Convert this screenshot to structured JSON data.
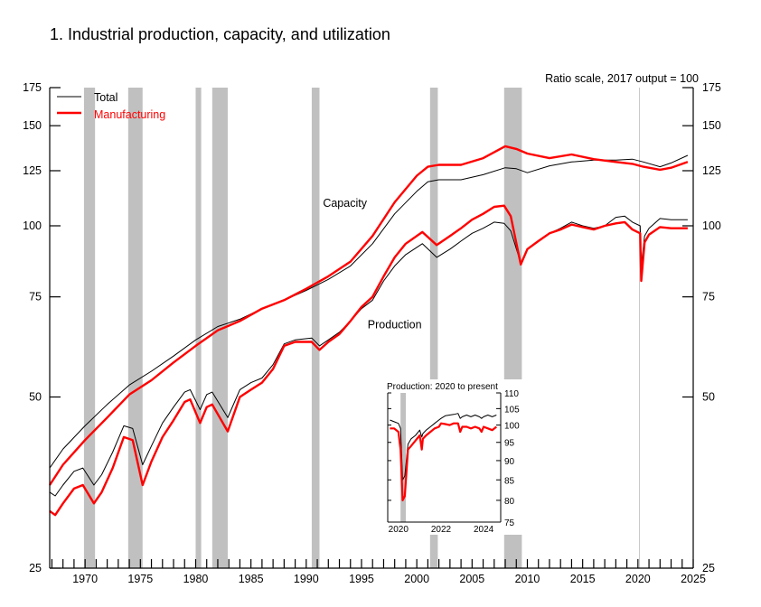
{
  "chart_data": {
    "type": "line",
    "title": "1.  Industrial production, capacity, and utilization",
    "note": "Ratio scale, 2017 output = 100",
    "xlabel": "",
    "ylabel": "",
    "yscale": "log",
    "ylim": [
      25,
      175
    ],
    "xlim": [
      1966.8,
      2025.0
    ],
    "yticks": [
      25,
      50,
      75,
      100,
      125,
      150,
      175
    ],
    "xticks": [
      1970,
      1975,
      1980,
      1985,
      1990,
      1995,
      2000,
      2005,
      2010,
      2015,
      2020,
      2025
    ],
    "legend": {
      "placement": "top-left",
      "entries": [
        {
          "name": "Total",
          "color": "#000000"
        },
        {
          "name": "Manufacturing",
          "color": "#ff0000"
        }
      ]
    },
    "annotations": [
      {
        "text": "Capacity",
        "x": 1993.5,
        "y": 108
      },
      {
        "text": "Production",
        "x": 1998.0,
        "y": 66
      }
    ],
    "recessions": [
      [
        1969.9,
        1970.9
      ],
      [
        1973.9,
        1975.2
      ],
      [
        1980.0,
        1980.5
      ],
      [
        1981.5,
        1982.9
      ],
      [
        1990.5,
        1991.2
      ],
      [
        2001.2,
        2001.9
      ],
      [
        2007.9,
        2009.5
      ],
      [
        2020.1,
        2020.3
      ]
    ],
    "series": [
      {
        "name": "Total capacity",
        "group": "Total",
        "color": "#000000",
        "x": [
          1966.8,
          1968,
          1970,
          1972,
          1974,
          1976,
          1978,
          1980,
          1982,
          1984,
          1986,
          1988,
          1990,
          1992,
          1994,
          1996,
          1998,
          2000,
          2001,
          2002,
          2004,
          2006,
          2008,
          2009,
          2010,
          2012,
          2014,
          2016,
          2018,
          2019.5,
          2020.5,
          2022,
          2023,
          2024.5
        ],
        "values": [
          37.5,
          40.5,
          44.5,
          48.5,
          52.5,
          55.5,
          59.0,
          63.0,
          66.5,
          68.5,
          71.5,
          74.0,
          77.0,
          80.5,
          85.0,
          93.0,
          105.0,
          115.0,
          119.5,
          120.5,
          120.5,
          123.0,
          126.5,
          126.0,
          124.0,
          127.5,
          129.5,
          130.5,
          130.5,
          131.0,
          129.5,
          127.0,
          129.0,
          133.0
        ]
      },
      {
        "name": "Manufacturing capacity",
        "group": "Manufacturing",
        "color": "#ff0000",
        "x": [
          1966.8,
          1968,
          1970,
          1972,
          1974,
          1976,
          1978,
          1980,
          1982,
          1984,
          1986,
          1988,
          1990,
          1992,
          1994,
          1996,
          1998,
          2000,
          2001,
          2002,
          2004,
          2006,
          2008,
          2009,
          2010,
          2012,
          2014,
          2016,
          2018,
          2019.5,
          2020.5,
          2022,
          2023,
          2024.5
        ],
        "values": [
          35.0,
          38.0,
          42.0,
          46.0,
          50.5,
          53.5,
          57.5,
          61.5,
          65.5,
          68.0,
          71.5,
          74.0,
          77.5,
          81.5,
          86.5,
          96.0,
          110.0,
          122.5,
          127.0,
          128.0,
          128.0,
          131.5,
          138.0,
          136.5,
          134.0,
          131.5,
          133.5,
          131.0,
          129.5,
          128.5,
          127.0,
          125.5,
          126.5,
          129.5
        ]
      },
      {
        "name": "Total production",
        "group": "Total",
        "color": "#000000",
        "x": [
          1966.8,
          1967.3,
          1968,
          1969,
          1969.8,
          1970.8,
          1971.5,
          1972.5,
          1973.5,
          1974.3,
          1975.2,
          1976,
          1977,
          1978,
          1979,
          1979.5,
          1980.4,
          1981.0,
          1981.5,
          1982.9,
          1984,
          1985,
          1986,
          1987,
          1988,
          1989,
          1990.5,
          1991.2,
          1992,
          1993,
          1994,
          1995,
          1996,
          1997,
          1998,
          1999,
          2000.5,
          2001.8,
          2003,
          2004,
          2005,
          2006,
          2007,
          2007.9,
          2008.5,
          2009.4,
          2010,
          2011,
          2012,
          2013,
          2014,
          2015,
          2016,
          2017,
          2018,
          2018.8,
          2019.5,
          2020.2,
          2020.3,
          2020.6,
          2021,
          2022,
          2023,
          2024.5
        ],
        "values": [
          34.0,
          33.5,
          35.0,
          37.0,
          37.5,
          35.0,
          36.5,
          40.0,
          44.5,
          44.0,
          38.0,
          41.0,
          45.0,
          48.0,
          51.0,
          51.5,
          47.5,
          50.5,
          51.0,
          46.0,
          51.5,
          53.0,
          54.0,
          57.0,
          62.0,
          63.0,
          63.5,
          61.5,
          63.0,
          65.0,
          68.0,
          71.5,
          74.0,
          80.0,
          85.0,
          89.0,
          93.0,
          88.0,
          91.0,
          94.0,
          97.0,
          99.0,
          101.5,
          101.0,
          98.0,
          86.0,
          91.0,
          94.0,
          97.0,
          99.0,
          101.5,
          100.0,
          99.0,
          100.0,
          103.5,
          104.0,
          101.5,
          100.0,
          85.0,
          96.0,
          99.0,
          103.0,
          102.5,
          102.5
        ]
      },
      {
        "name": "Manufacturing production",
        "group": "Manufacturing",
        "color": "#ff0000",
        "x": [
          1966.8,
          1967.3,
          1968,
          1969,
          1969.8,
          1970.8,
          1971.5,
          1972.5,
          1973.5,
          1974.3,
          1975.2,
          1976,
          1977,
          1978,
          1979,
          1979.5,
          1980.4,
          1981.0,
          1981.5,
          1982.9,
          1984,
          1985,
          1986,
          1987,
          1988,
          1989,
          1990.5,
          1991.2,
          1992,
          1993,
          1994,
          1995,
          1996,
          1997,
          1998,
          1999,
          2000.5,
          2001.8,
          2003,
          2004,
          2005,
          2006,
          2007,
          2007.9,
          2008.5,
          2009.4,
          2010,
          2011,
          2012,
          2013,
          2014,
          2015,
          2016,
          2017,
          2018,
          2018.8,
          2019.5,
          2020.2,
          2020.3,
          2020.6,
          2021,
          2022,
          2023,
          2024.5
        ],
        "values": [
          31.5,
          31.0,
          32.5,
          34.5,
          35.0,
          32.5,
          34.0,
          37.5,
          42.5,
          42.0,
          35.0,
          38.5,
          42.5,
          45.5,
          49.0,
          49.5,
          45.0,
          48.0,
          48.5,
          43.5,
          50.0,
          51.5,
          53.0,
          56.0,
          61.5,
          62.5,
          62.5,
          60.5,
          62.5,
          64.5,
          68.0,
          72.0,
          75.0,
          81.5,
          88.0,
          93.0,
          97.5,
          92.5,
          96.0,
          99.0,
          102.5,
          105.0,
          108.0,
          108.5,
          104.0,
          85.5,
          91.0,
          94.0,
          97.0,
          98.5,
          100.5,
          99.5,
          98.5,
          100.0,
          101.0,
          101.5,
          98.5,
          97.0,
          80.0,
          93.5,
          96.5,
          99.5,
          99.0,
          99.0
        ]
      }
    ],
    "inset": {
      "title": "Production: 2020 to present",
      "type": "line",
      "ylim": [
        75,
        110
      ],
      "xlim": [
        2019.5,
        2024.8
      ],
      "yticks": [
        75,
        80,
        85,
        90,
        95,
        100,
        105,
        110
      ],
      "xticks": [
        2020,
        2022,
        2024
      ],
      "recessions": [
        [
          2020.1,
          2020.35
        ]
      ],
      "series": [
        {
          "name": "Total",
          "color": "#000000",
          "x": [
            2019.6,
            2019.8,
            2020.0,
            2020.1,
            2020.2,
            2020.3,
            2020.45,
            2020.6,
            2020.8,
            2021.0,
            2021.1,
            2021.15,
            2021.3,
            2021.5,
            2021.7,
            2021.9,
            2022.0,
            2022.2,
            2022.4,
            2022.6,
            2022.8,
            2022.9,
            2023.0,
            2023.2,
            2023.4,
            2023.6,
            2023.8,
            2023.9,
            2024.0,
            2024.2,
            2024.4,
            2024.6
          ],
          "values": [
            101.5,
            101.0,
            100.5,
            99.0,
            85.0,
            86.0,
            94.5,
            96.0,
            97.0,
            98.5,
            96.5,
            97.5,
            98.5,
            99.5,
            100.5,
            101.5,
            102.0,
            102.8,
            103.0,
            103.2,
            103.5,
            102.0,
            102.5,
            103.0,
            102.5,
            103.0,
            102.5,
            102.0,
            102.5,
            103.0,
            102.5,
            103.0
          ]
        },
        {
          "name": "Manufacturing",
          "color": "#ff0000",
          "x": [
            2019.6,
            2019.8,
            2020.0,
            2020.1,
            2020.2,
            2020.3,
            2020.45,
            2020.6,
            2020.8,
            2021.0,
            2021.1,
            2021.15,
            2021.3,
            2021.5,
            2021.7,
            2021.9,
            2022.0,
            2022.2,
            2022.4,
            2022.6,
            2022.8,
            2022.9,
            2023.0,
            2023.2,
            2023.4,
            2023.6,
            2023.8,
            2023.9,
            2024.0,
            2024.2,
            2024.4,
            2024.6
          ],
          "values": [
            99.0,
            99.0,
            98.0,
            93.0,
            80.0,
            81.0,
            93.0,
            94.0,
            95.5,
            97.0,
            93.0,
            96.0,
            97.0,
            98.0,
            99.0,
            99.5,
            100.5,
            100.3,
            100.0,
            100.5,
            100.5,
            98.0,
            99.5,
            99.5,
            99.0,
            99.5,
            99.0,
            98.0,
            99.5,
            99.0,
            98.5,
            99.5
          ]
        }
      ]
    }
  }
}
